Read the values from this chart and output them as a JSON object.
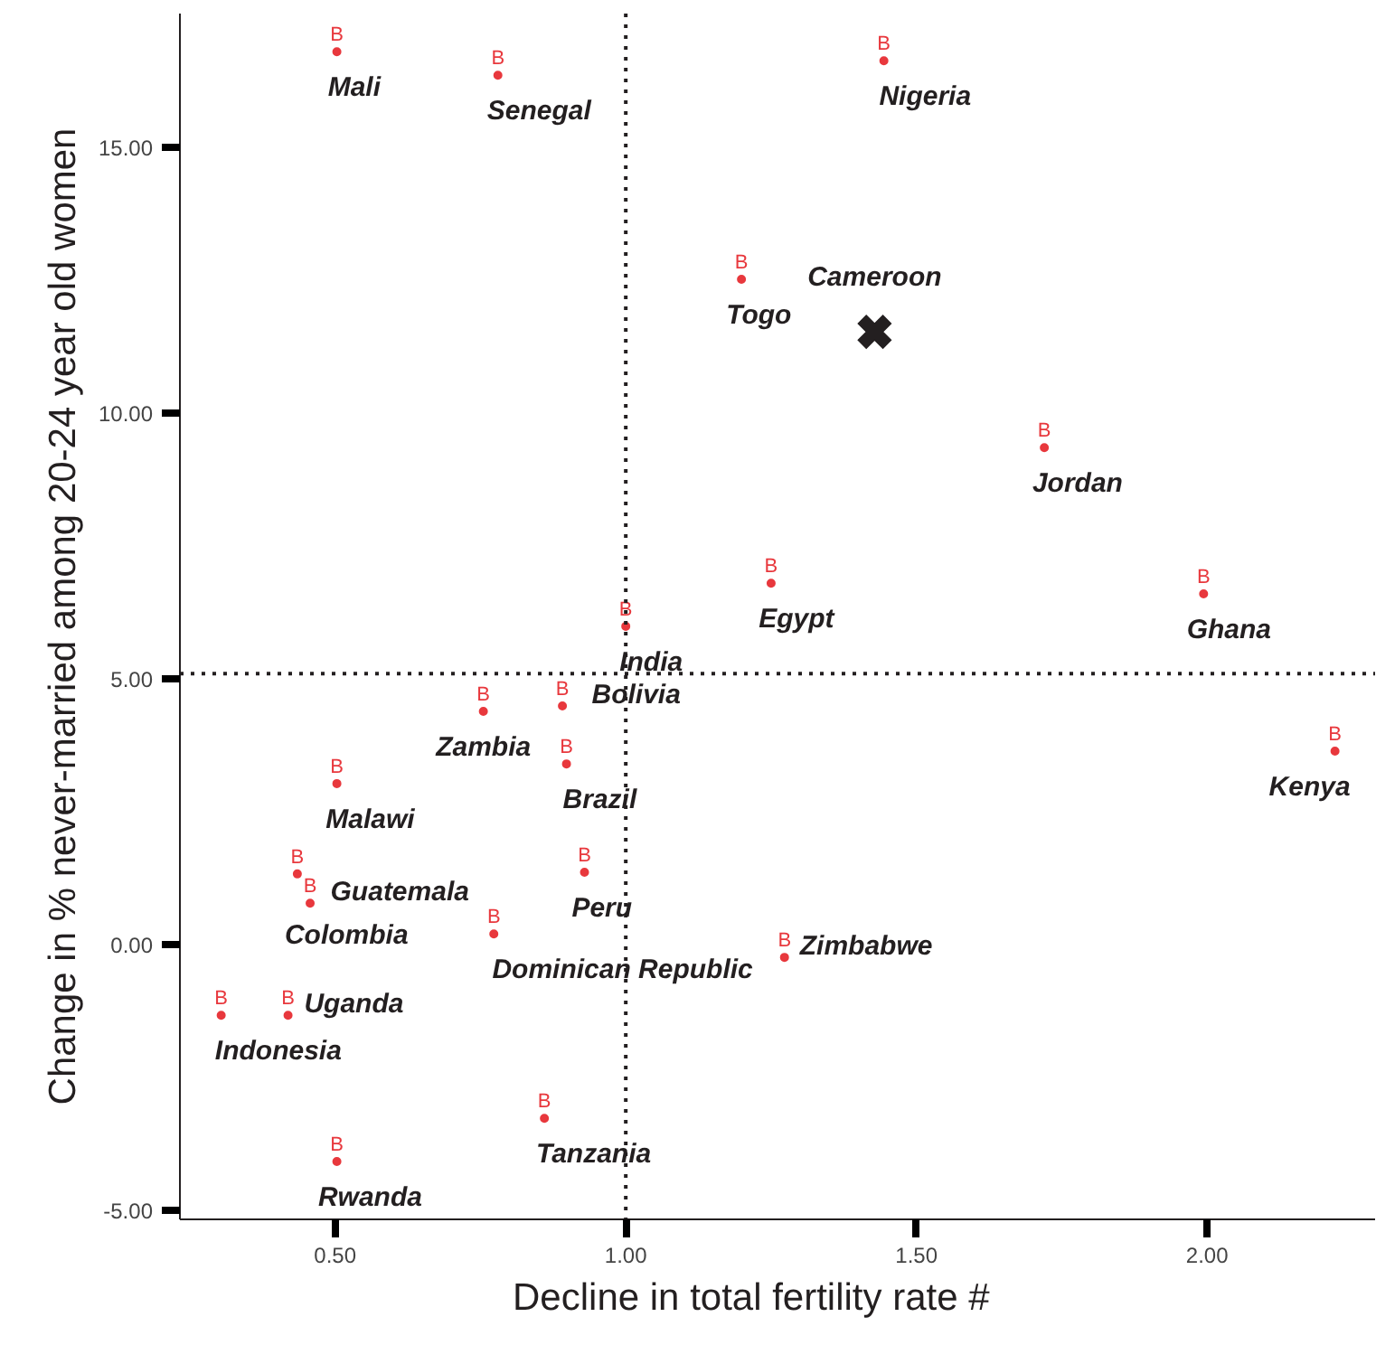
{
  "chart_data": {
    "type": "scatter",
    "xlabel": "Decline in total fertility rate      #",
    "ylabel": "Change in % never-married among 20-24 year old women",
    "xlim": [
      0.233,
      2.289
    ],
    "ylim": [
      -5.17,
      17.52
    ],
    "xticks": [
      {
        "value": 0.5,
        "label": "0.50"
      },
      {
        "value": 1.0,
        "label": "1.00"
      },
      {
        "value": 1.5,
        "label": "1.50"
      },
      {
        "value": 2.0,
        "label": "2.00"
      }
    ],
    "yticks": [
      {
        "value": -5,
        "label": "-5.00"
      },
      {
        "value": 0,
        "label": "0.00"
      },
      {
        "value": 5,
        "label": "5.00"
      },
      {
        "value": 10,
        "label": "10.00"
      },
      {
        "value": 15,
        "label": "15.00"
      }
    ],
    "grid": false,
    "series": [
      {
        "name": "B",
        "color": "#e8383d",
        "marker": "circle",
        "x": [
          0.503,
          0.78,
          1.444,
          1.199,
          1.72,
          1.25,
          1.994,
          1.0,
          0.755,
          0.891,
          2.22,
          0.503,
          0.898,
          0.929,
          0.435,
          0.457,
          0.773,
          1.273,
          0.304,
          0.419,
          0.86,
          0.503
        ],
        "values": [
          16.8,
          16.36,
          16.63,
          12.52,
          9.35,
          6.8,
          6.6,
          5.99,
          4.39,
          4.49,
          3.64,
          3.03,
          3.4,
          1.36,
          1.33,
          0.78,
          0.2,
          -0.24,
          -1.33,
          -1.33,
          -3.27,
          -4.08
        ]
      },
      {
        "color": "#231f20",
        "marker": "cross",
        "x": [
          1.428
        ],
        "values": [
          11.53
        ]
      }
    ],
    "ref_lines": [
      {
        "axis": "x",
        "value": 1.0,
        "line_style": "dotted",
        "color": "#231f20"
      },
      {
        "axis": "y",
        "value": 5.1,
        "line_style": "dotted",
        "color": "#231f20"
      }
    ],
    "annotations": [
      {
        "text": "Mali",
        "x": 0.503,
        "y": 16.8
      },
      {
        "text": "Senegal",
        "x": 0.78,
        "y": 16.36
      },
      {
        "text": "Nigeria",
        "x": 1.444,
        "y": 16.63
      },
      {
        "text": "Togo",
        "x": 1.199,
        "y": 12.52
      },
      {
        "text": "Cameroon",
        "x": 1.428,
        "y": 11.53
      },
      {
        "text": "Jordan",
        "x": 1.72,
        "y": 9.35
      },
      {
        "text": "Egypt",
        "x": 1.25,
        "y": 6.8
      },
      {
        "text": "Ghana",
        "x": 1.994,
        "y": 6.6
      },
      {
        "text": "India",
        "x": 1.0,
        "y": 5.99
      },
      {
        "text": "Zambia",
        "x": 0.755,
        "y": 4.39
      },
      {
        "text": "Bolivia",
        "x": 0.891,
        "y": 4.49
      },
      {
        "text": "Kenya",
        "x": 2.22,
        "y": 3.64
      },
      {
        "text": "Malawi",
        "x": 0.503,
        "y": 3.03
      },
      {
        "text": "Brazil",
        "x": 0.898,
        "y": 3.4
      },
      {
        "text": "Colombia",
        "x": 0.435,
        "y": 1.33
      },
      {
        "text": "Peru",
        "x": 0.929,
        "y": 1.36
      },
      {
        "text": "Guatemala",
        "x": 0.457,
        "y": 0.78
      },
      {
        "text": "Dominican Republic",
        "x": 0.773,
        "y": 0.2
      },
      {
        "text": "Zimbabwe",
        "x": 1.273,
        "y": -0.24
      },
      {
        "text": "Indonesia",
        "x": 0.304,
        "y": -1.33
      },
      {
        "text": "Uganda",
        "x": 0.419,
        "y": -1.33
      },
      {
        "text": "Tanzania",
        "x": 0.86,
        "y": -3.27
      },
      {
        "text": "Rwanda",
        "x": 0.503,
        "y": -4.08
      }
    ]
  }
}
